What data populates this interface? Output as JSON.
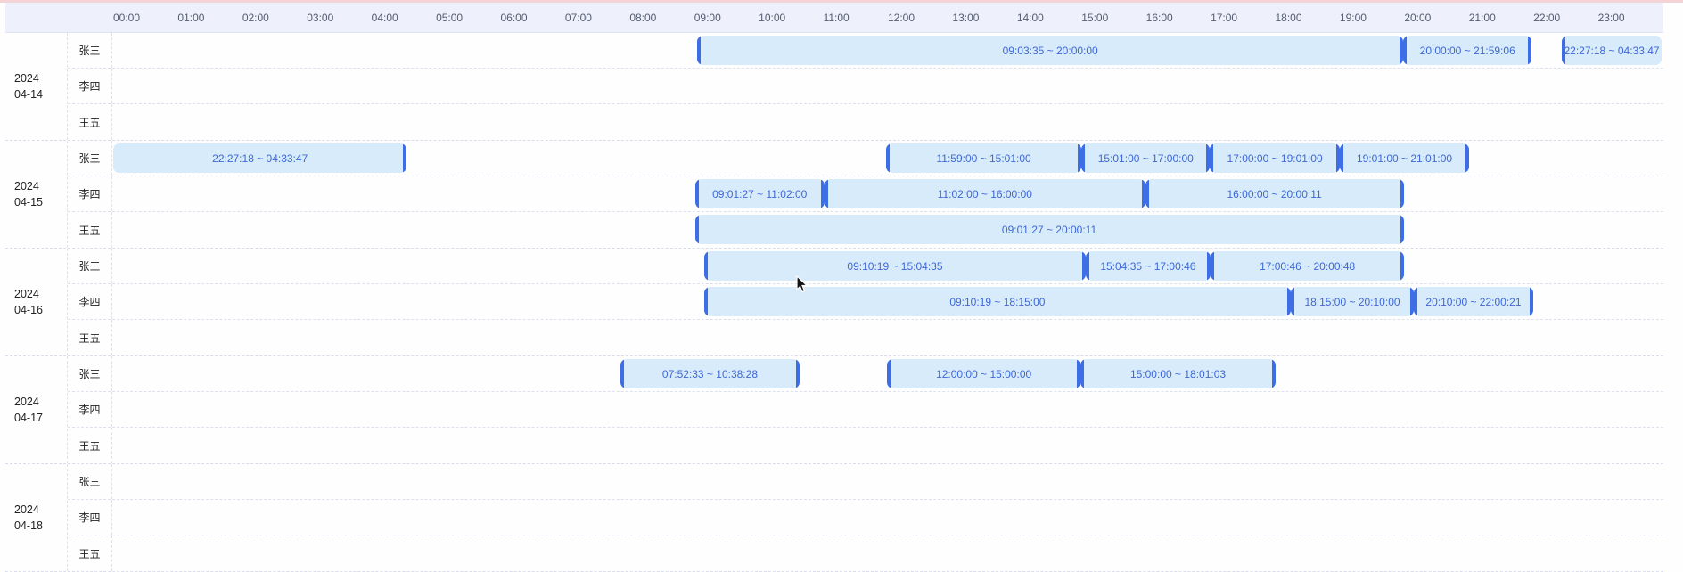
{
  "timeline": {
    "hours": [
      "00:00",
      "01:00",
      "02:00",
      "03:00",
      "04:00",
      "05:00",
      "06:00",
      "07:00",
      "08:00",
      "09:00",
      "10:00",
      "11:00",
      "12:00",
      "13:00",
      "14:00",
      "15:00",
      "16:00",
      "17:00",
      "18:00",
      "19:00",
      "20:00",
      "21:00",
      "22:00",
      "23:00"
    ]
  },
  "colors": {
    "bar_fill": "#d7ebfb",
    "handle": "#3e6ee6",
    "bar_text": "#3e68d6",
    "header_bg": "#eef1fb"
  },
  "groups": [
    {
      "date_year": "2024",
      "date_md": "04-14",
      "rows": [
        {
          "name": "张三",
          "bars": [
            {
              "start": "09:03:35",
              "end": "20:00:00",
              "label": "09:03:35 ~ 20:00:00",
              "lh": true,
              "rh": true
            },
            {
              "start": "20:00:00",
              "end": "21:59:06",
              "label": "20:00:00 ~ 21:59:06",
              "lh": true,
              "rh": true
            },
            {
              "start": "22:27:18",
              "end": "24:00:00",
              "label": "22:27:18 ~ 04:33:47",
              "lh": true,
              "rh": false
            }
          ]
        },
        {
          "name": "李四",
          "bars": []
        },
        {
          "name": "王五",
          "bars": []
        }
      ]
    },
    {
      "date_year": "2024",
      "date_md": "04-15",
      "rows": [
        {
          "name": "张三",
          "bars": [
            {
              "start": "00:00:00",
              "end": "04:33:47",
              "label": "22:27:18 ~ 04:33:47",
              "lh": false,
              "rh": true
            },
            {
              "start": "11:59:00",
              "end": "15:01:00",
              "label": "11:59:00 ~ 15:01:00",
              "lh": true,
              "rh": true
            },
            {
              "start": "15:01:00",
              "end": "17:00:00",
              "label": "15:01:00 ~ 17:00:00",
              "lh": true,
              "rh": true
            },
            {
              "start": "17:00:00",
              "end": "19:01:00",
              "label": "17:00:00 ~ 19:01:00",
              "lh": true,
              "rh": true
            },
            {
              "start": "19:01:00",
              "end": "21:01:00",
              "label": "19:01:00 ~ 21:01:00",
              "lh": true,
              "rh": true
            }
          ]
        },
        {
          "name": "李四",
          "bars": [
            {
              "start": "09:01:27",
              "end": "11:02:00",
              "label": "09:01:27 ~ 11:02:00",
              "lh": true,
              "rh": true
            },
            {
              "start": "11:02:00",
              "end": "16:00:00",
              "label": "11:02:00 ~ 16:00:00",
              "lh": true,
              "rh": true
            },
            {
              "start": "16:00:00",
              "end": "20:00:11",
              "label": "16:00:00 ~ 20:00:11",
              "lh": true,
              "rh": true
            }
          ]
        },
        {
          "name": "王五",
          "bars": [
            {
              "start": "09:01:27",
              "end": "20:00:11",
              "label": "09:01:27 ~ 20:00:11",
              "lh": true,
              "rh": true
            }
          ]
        }
      ]
    },
    {
      "date_year": "2024",
      "date_md": "04-16",
      "rows": [
        {
          "name": "张三",
          "bars": [
            {
              "start": "09:10:19",
              "end": "15:04:35",
              "label": "09:10:19 ~ 15:04:35",
              "lh": true,
              "rh": true
            },
            {
              "start": "15:04:35",
              "end": "17:00:46",
              "label": "15:04:35 ~ 17:00:46",
              "lh": true,
              "rh": true
            },
            {
              "start": "17:00:46",
              "end": "20:00:48",
              "label": "17:00:46 ~ 20:00:48",
              "lh": true,
              "rh": true
            }
          ]
        },
        {
          "name": "李四",
          "bars": [
            {
              "start": "09:10:19",
              "end": "18:15:00",
              "label": "09:10:19 ~ 18:15:00",
              "lh": true,
              "rh": true
            },
            {
              "start": "18:15:00",
              "end": "20:10:00",
              "label": "18:15:00 ~ 20:10:00",
              "lh": true,
              "rh": true
            },
            {
              "start": "20:10:00",
              "end": "22:00:21",
              "label": "20:10:00 ~ 22:00:21",
              "lh": true,
              "rh": true
            }
          ]
        },
        {
          "name": "王五",
          "bars": []
        }
      ]
    },
    {
      "date_year": "2024",
      "date_md": "04-17",
      "rows": [
        {
          "name": "张三",
          "bars": [
            {
              "start": "07:52:33",
              "end": "10:38:28",
              "label": "07:52:33 ~ 10:38:28",
              "lh": true,
              "rh": true
            },
            {
              "start": "12:00:00",
              "end": "15:00:00",
              "label": "12:00:00 ~ 15:00:00",
              "lh": true,
              "rh": true
            },
            {
              "start": "15:00:00",
              "end": "18:01:03",
              "label": "15:00:00 ~ 18:01:03",
              "lh": true,
              "rh": true
            }
          ]
        },
        {
          "name": "李四",
          "bars": []
        },
        {
          "name": "王五",
          "bars": []
        }
      ]
    },
    {
      "date_year": "2024",
      "date_md": "04-18",
      "rows": [
        {
          "name": "张三",
          "bars": []
        },
        {
          "name": "李四",
          "bars": []
        },
        {
          "name": "王五",
          "bars": []
        }
      ]
    }
  ]
}
